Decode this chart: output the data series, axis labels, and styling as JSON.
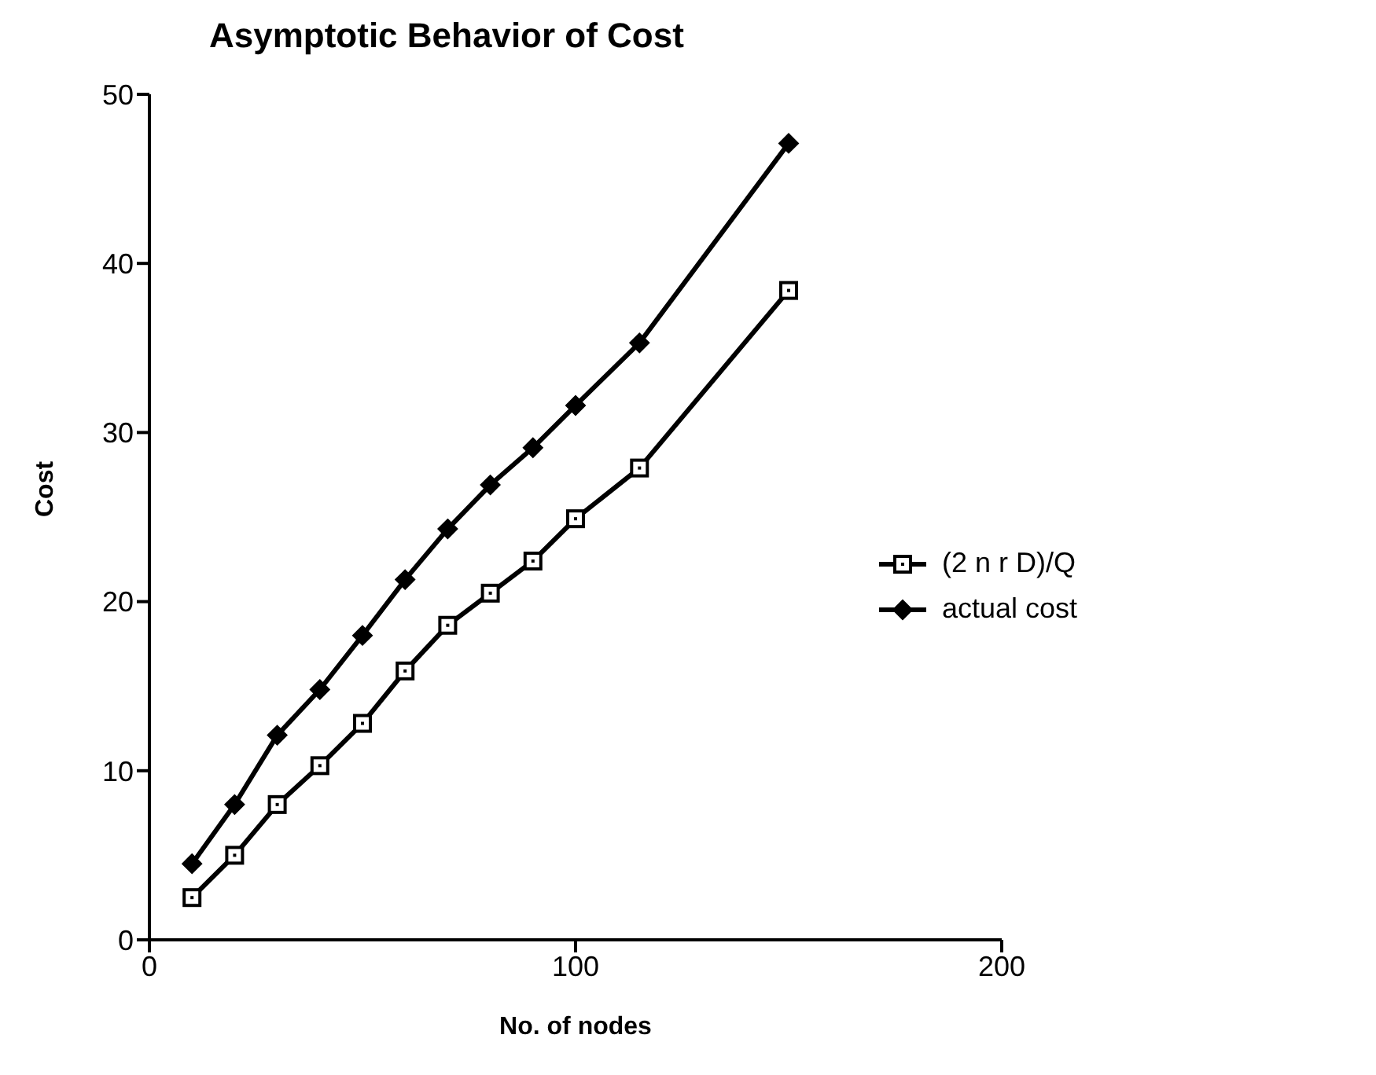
{
  "chart_data": {
    "type": "line",
    "title": "Asymptotic Behavior of Cost",
    "xlabel": "No. of nodes",
    "ylabel": "Cost",
    "x": [
      10,
      20,
      30,
      40,
      50,
      60,
      70,
      80,
      90,
      100,
      115,
      150
    ],
    "series": [
      {
        "name": "(2 n r D)/Q",
        "color": "#000000",
        "marker": "square",
        "values": [
          2.5,
          5,
          8,
          10.3,
          12.8,
          15.9,
          18.6,
          20.5,
          22.4,
          24.9,
          27.9,
          38.4
        ]
      },
      {
        "name": "actual cost",
        "color": "#000000",
        "marker": "diamond",
        "values": [
          4.5,
          8,
          12.1,
          14.8,
          18,
          21.3,
          24.3,
          26.9,
          29.1,
          31.6,
          35.3,
          47.1
        ]
      }
    ],
    "xlim": [
      0,
      200
    ],
    "xticks": [
      0,
      100,
      200
    ],
    "ylim": [
      0,
      50
    ],
    "yticks": [
      0,
      10,
      20,
      30,
      40,
      50
    ],
    "grid": false,
    "legend": "right",
    "line_style": "solid"
  }
}
